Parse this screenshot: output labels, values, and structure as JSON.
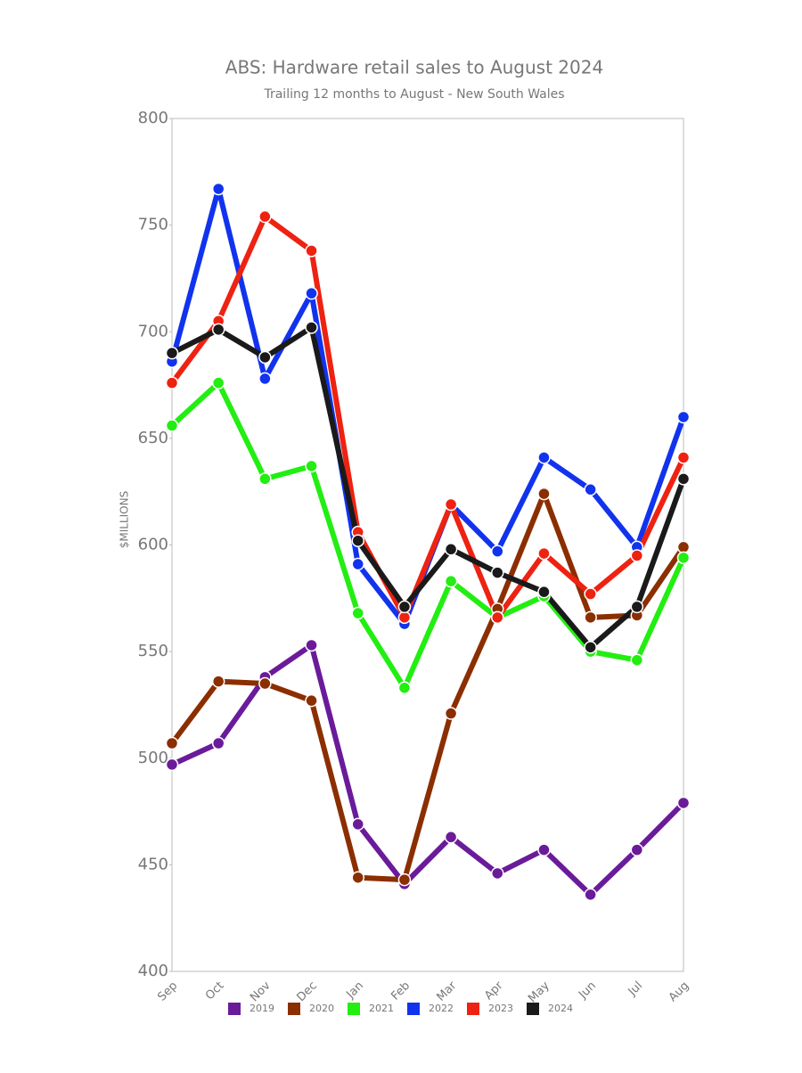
{
  "chart_data": {
    "type": "line",
    "title": "ABS: Hardware retail sales to August 2024",
    "subtitle": "Trailing 12 months to August - New South Wales",
    "y_label": "$MILLIONS",
    "categories": [
      "Sep",
      "Oct",
      "Nov",
      "Dec",
      "Jan",
      "Feb",
      "Mar",
      "Apr",
      "May",
      "Jun",
      "Jul",
      "Aug"
    ],
    "series": [
      {
        "name": "2019",
        "color": "#6a1b9a",
        "values": [
          497,
          507,
          538,
          553,
          469,
          441,
          463,
          446,
          457,
          436,
          457,
          479
        ]
      },
      {
        "name": "2020",
        "color": "#8b2e00",
        "values": [
          507,
          536,
          535,
          527,
          444,
          443,
          521,
          570,
          624,
          566,
          567,
          599
        ]
      },
      {
        "name": "2021",
        "color": "#22ee11",
        "values": [
          656,
          676,
          631,
          637,
          568,
          533,
          583,
          566,
          576,
          550,
          546,
          594
        ]
      },
      {
        "name": "2022",
        "color": "#1133ee",
        "values": [
          686,
          767,
          678,
          718,
          591,
          563,
          619,
          597,
          641,
          626,
          599,
          660
        ]
      },
      {
        "name": "2023",
        "color": "#ee2211",
        "values": [
          676,
          705,
          754,
          738,
          606,
          566,
          619,
          566,
          596,
          577,
          595,
          641
        ]
      },
      {
        "name": "2024",
        "color": "#1a1a1a",
        "values": [
          690,
          701,
          688,
          702,
          602,
          571,
          598,
          587,
          578,
          552,
          571,
          631
        ]
      }
    ],
    "ylim": [
      400,
      800
    ],
    "yticks": [
      400,
      450,
      500,
      550,
      600,
      650,
      700,
      750,
      800
    ]
  }
}
